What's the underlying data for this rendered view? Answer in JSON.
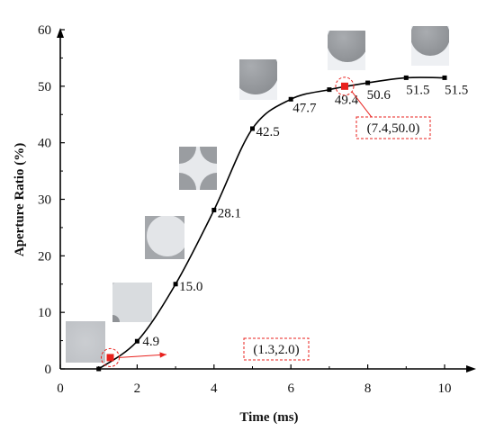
{
  "chart_data": {
    "type": "line",
    "title": "",
    "xlabel": "Time (ms)",
    "ylabel": "Aperture Ratio (%)",
    "xlim": [
      0,
      10
    ],
    "ylim": [
      0,
      60
    ],
    "xticks": [
      "0",
      "2",
      "4",
      "6",
      "8",
      "10"
    ],
    "yticks": [
      "0",
      "10",
      "20",
      "30",
      "40",
      "50",
      "60"
    ],
    "grid": false,
    "legend": "none",
    "line_color": "#000000",
    "highlight_color": "#e8211d",
    "series": [
      {
        "x": [
          1,
          2,
          3,
          4,
          5,
          6,
          7,
          8,
          9,
          10
        ],
        "y": [
          0,
          4.9,
          15.0,
          28.1,
          42.5,
          47.7,
          49.4,
          50.6,
          51.5,
          51.5
        ]
      }
    ],
    "point_labels": [
      {
        "x": 2,
        "y": 4.9,
        "text": "4.9"
      },
      {
        "x": 3,
        "y": 15.0,
        "text": "15.0"
      },
      {
        "x": 4,
        "y": 28.1,
        "text": "28.1"
      },
      {
        "x": 5,
        "y": 42.5,
        "text": "42.5"
      },
      {
        "x": 6,
        "y": 47.7,
        "text": "47.7"
      },
      {
        "x": 7,
        "y": 49.4,
        "text": "49.4"
      },
      {
        "x": 8,
        "y": 50.6,
        "text": "50.6"
      },
      {
        "x": 9,
        "y": 51.5,
        "text": "51.5"
      },
      {
        "x": 10,
        "y": 51.5,
        "text": "51.5"
      }
    ],
    "annotations": [
      {
        "x": 1.3,
        "y": 2.0,
        "text": "(1.3,2.0)"
      },
      {
        "x": 7.4,
        "y": 50.0,
        "text": "(7.4,50.0)"
      }
    ]
  }
}
